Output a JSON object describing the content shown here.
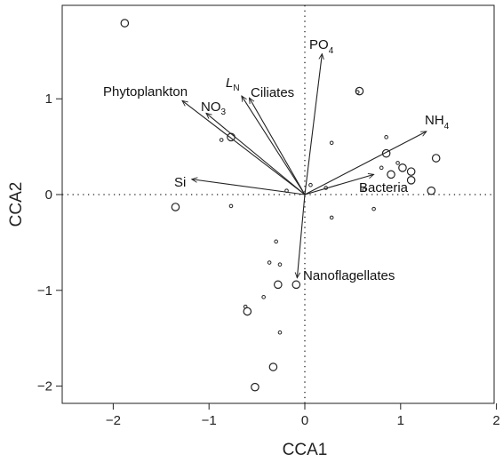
{
  "chart_data": {
    "type": "scatter",
    "title": "",
    "xlabel": "CCA1",
    "ylabel": "CCA2",
    "xlim": [
      -2.5,
      2.1
    ],
    "ylim": [
      -2.2,
      1.9
    ],
    "xticks": [
      -2,
      -1,
      0,
      1,
      2
    ],
    "yticks": [
      -2,
      -1,
      0,
      1
    ],
    "xtick_labels": [
      "−2",
      "−1",
      "0",
      "1",
      "2"
    ],
    "ytick_labels": [
      "−2",
      "−1",
      "0",
      "1"
    ],
    "zero_lines": "dotted",
    "grid": false,
    "vectors": [
      {
        "name": "Phytoplankton",
        "x": -1.28,
        "y": 0.98
      },
      {
        "name": "NO3",
        "x": -1.03,
        "y": 0.85
      },
      {
        "name": "LN",
        "x": -0.66,
        "y": 1.03
      },
      {
        "name": "Ciliates",
        "x": -0.58,
        "y": 1.01
      },
      {
        "name": "PO4",
        "x": 0.18,
        "y": 1.47
      },
      {
        "name": "NH4",
        "x": 1.27,
        "y": 0.66
      },
      {
        "name": "Si",
        "x": -1.18,
        "y": 0.16
      },
      {
        "name": "Bacteria",
        "x": 0.72,
        "y": 0.21
      },
      {
        "name": "Nanoflagellates",
        "x": -0.08,
        "y": -0.87
      }
    ],
    "sites_large": [
      {
        "x": -1.88,
        "y": 1.79
      },
      {
        "x": -1.35,
        "y": -0.13
      },
      {
        "x": -0.77,
        "y": 0.6
      },
      {
        "x": 0.57,
        "y": 1.08
      },
      {
        "x": 0.85,
        "y": 0.43
      },
      {
        "x": 0.9,
        "y": 0.21
      },
      {
        "x": 1.02,
        "y": 0.28
      },
      {
        "x": 1.11,
        "y": 0.24
      },
      {
        "x": 1.11,
        "y": 0.15
      },
      {
        "x": 1.37,
        "y": 0.38
      },
      {
        "x": 1.32,
        "y": 0.04
      },
      {
        "x": -0.28,
        "y": -0.94
      },
      {
        "x": -0.09,
        "y": -0.94
      },
      {
        "x": -0.6,
        "y": -1.22
      },
      {
        "x": -0.33,
        "y": -1.8
      },
      {
        "x": -0.52,
        "y": -2.01
      }
    ],
    "sites_small": [
      {
        "x": -0.87,
        "y": 0.57
      },
      {
        "x": -0.77,
        "y": -0.12
      },
      {
        "x": -0.19,
        "y": 0.04
      },
      {
        "x": 0.06,
        "y": 0.1
      },
      {
        "x": 0.22,
        "y": 0.07
      },
      {
        "x": 0.28,
        "y": 0.54
      },
      {
        "x": 0.28,
        "y": -0.24
      },
      {
        "x": 0.55,
        "y": 1.07
      },
      {
        "x": 0.62,
        "y": 0.05
      },
      {
        "x": 0.72,
        "y": -0.15
      },
      {
        "x": 0.8,
        "y": 0.28
      },
      {
        "x": 0.85,
        "y": 0.6
      },
      {
        "x": 0.97,
        "y": 0.33
      },
      {
        "x": -0.3,
        "y": -0.49
      },
      {
        "x": -0.37,
        "y": -0.71
      },
      {
        "x": -0.26,
        "y": -0.73
      },
      {
        "x": -0.43,
        "y": -1.07
      },
      {
        "x": -0.62,
        "y": -1.17
      },
      {
        "x": -0.26,
        "y": -1.44
      }
    ]
  },
  "labels": {
    "phyto": "Phytoplankton",
    "no3_main": "NO",
    "no3_sub": "3",
    "ln_main": "L",
    "ln_sub": "N",
    "ciliates": "Ciliates",
    "po4_main": "PO",
    "po4_sub": "4",
    "nh4_main": "NH",
    "nh4_sub": "4",
    "si": "Si",
    "bacteria": "Bacteria",
    "nano": "Nanoflagellates"
  }
}
